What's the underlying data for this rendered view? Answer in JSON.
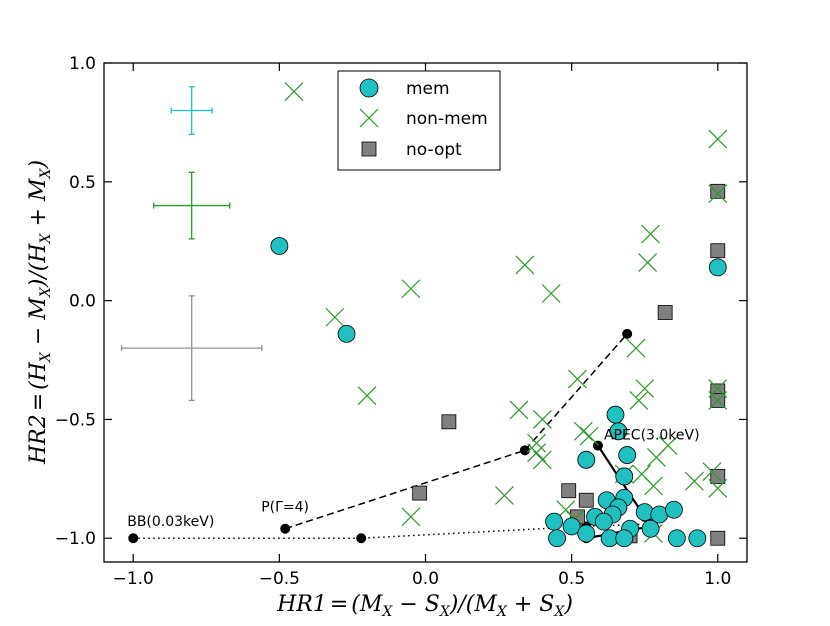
{
  "chart_data": {
    "type": "scatter",
    "title": "",
    "xlabel": "HR1 = (M_X − S_X)/(M_X + S_X)",
    "ylabel": "HR2 = (H_X − M_X)/(H_X + M_X)",
    "xlabel_parts": [
      "HR1",
      "=",
      "(M",
      "X",
      " − S",
      "X",
      ")/(M",
      "X",
      " + S",
      "X",
      ")"
    ],
    "ylabel_parts": [
      "HR2",
      "=",
      "(H",
      "X",
      " − M",
      "X",
      ")/(H",
      "X",
      " + M",
      "X",
      ")"
    ],
    "xlim": [
      -1.1,
      1.1
    ],
    "ylim": [
      -1.1,
      1.0
    ],
    "xticks": [
      -1.0,
      -0.5,
      0.0,
      0.5,
      1.0
    ],
    "xtick_labels": [
      "−1.0",
      "−0.5",
      "0.0",
      "0.5",
      "1.0"
    ],
    "yticks": [
      -1.0,
      -0.5,
      0.0,
      0.5,
      1.0
    ],
    "ytick_labels": [
      "−1.0",
      "−0.5",
      "0.0",
      "0.5",
      "1.0"
    ],
    "legend": {
      "position": "top-center",
      "entries": [
        {
          "label": "mem",
          "marker": "circle",
          "color": "#20c0c0"
        },
        {
          "label": "non-mem",
          "marker": "x",
          "color": "#2a9a2a"
        },
        {
          "label": "no-opt",
          "marker": "square",
          "color": "#808080"
        }
      ]
    },
    "series": [
      {
        "name": "mem",
        "marker": "circle",
        "color": "#20c0c0",
        "points": [
          [
            -0.5,
            0.23
          ],
          [
            -0.27,
            -0.14
          ],
          [
            1.0,
            0.14
          ],
          [
            0.65,
            -0.48
          ],
          [
            0.55,
            -0.67
          ],
          [
            0.66,
            -0.55
          ],
          [
            0.69,
            -0.65
          ],
          [
            0.68,
            -0.74
          ],
          [
            0.68,
            -0.83
          ],
          [
            0.62,
            -0.84
          ],
          [
            0.66,
            -0.87
          ],
          [
            0.64,
            -0.9
          ],
          [
            0.75,
            -0.89
          ],
          [
            0.8,
            -0.9
          ],
          [
            0.85,
            -0.88
          ],
          [
            0.58,
            -0.91
          ],
          [
            0.61,
            -0.93
          ],
          [
            0.7,
            -0.96
          ],
          [
            0.77,
            -0.96
          ],
          [
            0.44,
            -0.93
          ],
          [
            0.5,
            -0.95
          ],
          [
            0.55,
            -0.98
          ],
          [
            0.63,
            -1.0
          ],
          [
            0.68,
            -1.0
          ],
          [
            0.45,
            -1.0
          ],
          [
            0.86,
            -1.0
          ],
          [
            0.93,
            -1.0
          ]
        ]
      },
      {
        "name": "non-mem",
        "marker": "x",
        "color": "#2a9a2a",
        "points": [
          [
            -0.45,
            0.88
          ],
          [
            1.0,
            0.68
          ],
          [
            1.0,
            0.45
          ],
          [
            0.77,
            0.28
          ],
          [
            0.76,
            0.16
          ],
          [
            0.34,
            0.15
          ],
          [
            0.43,
            0.03
          ],
          [
            -0.05,
            0.05
          ],
          [
            -0.31,
            -0.07
          ],
          [
            0.72,
            -0.2
          ],
          [
            0.75,
            -0.37
          ],
          [
            0.73,
            -0.42
          ],
          [
            0.52,
            -0.33
          ],
          [
            -0.2,
            -0.4
          ],
          [
            0.32,
            -0.46
          ],
          [
            0.4,
            -0.5
          ],
          [
            0.38,
            -0.6
          ],
          [
            0.38,
            -0.64
          ],
          [
            0.4,
            -0.67
          ],
          [
            0.54,
            -0.55
          ],
          [
            0.56,
            -0.57
          ],
          [
            0.83,
            -0.61
          ],
          [
            0.79,
            -0.66
          ],
          [
            0.68,
            -0.73
          ],
          [
            0.74,
            -0.73
          ],
          [
            0.78,
            -0.78
          ],
          [
            0.92,
            -0.76
          ],
          [
            0.98,
            -0.72
          ],
          [
            1.0,
            -0.79
          ],
          [
            1.0,
            -0.37
          ],
          [
            1.0,
            -0.42
          ],
          [
            0.27,
            -0.82
          ],
          [
            0.48,
            -0.88
          ],
          [
            0.51,
            -0.92
          ],
          [
            -0.05,
            -0.91
          ],
          [
            0.78,
            -0.98
          ]
        ]
      },
      {
        "name": "no-opt",
        "marker": "square",
        "color": "#808080",
        "points": [
          [
            1.0,
            0.46
          ],
          [
            1.0,
            0.21
          ],
          [
            1.0,
            -0.38
          ],
          [
            1.0,
            -0.42
          ],
          [
            1.0,
            -0.74
          ],
          [
            1.0,
            -1.0
          ],
          [
            0.82,
            -0.05
          ],
          [
            0.08,
            -0.51
          ],
          [
            -0.02,
            -0.81
          ],
          [
            0.49,
            -0.8
          ],
          [
            0.55,
            -0.84
          ],
          [
            0.52,
            -0.91
          ],
          [
            0.7,
            -0.99
          ]
        ]
      }
    ],
    "error_bars": [
      {
        "name": "mem-typical-error",
        "color": "#20c0c0",
        "x": -0.8,
        "y": 0.8,
        "xerr": 0.07,
        "yerr": 0.1
      },
      {
        "name": "non-mem-typical-error",
        "color": "#2a9a2a",
        "x": -0.8,
        "y": 0.4,
        "xerr": 0.13,
        "yerr": 0.14
      },
      {
        "name": "no-opt-typical-error",
        "color": "#909090",
        "x": -0.8,
        "y": -0.2,
        "xerr": 0.24,
        "yerr": 0.22
      }
    ],
    "model_tracks": [
      {
        "name": "BB",
        "label": "BB(0.03keV)",
        "style": "dotted",
        "points": [
          [
            -1.0,
            -1.0
          ],
          [
            -0.22,
            -1.0
          ],
          [
            0.55,
            -0.95
          ],
          [
            0.77,
            -0.94
          ]
        ]
      },
      {
        "name": "powerlaw",
        "label": "P(Γ=4)",
        "style": "dashed",
        "points": [
          [
            -0.48,
            -0.96
          ],
          [
            0.34,
            -0.63
          ],
          [
            0.69,
            -0.14
          ]
        ]
      },
      {
        "name": "APEC",
        "label": "APEC(3.0keV)",
        "style": "solid",
        "segments": [
          [
            [
              0.59,
              -0.61
            ],
            [
              0.75,
              -0.91
            ],
            [
              0.77,
              -0.95
            ]
          ],
          [
            [
              0.55,
              -1.0
            ],
            [
              0.77,
              -0.95
            ]
          ]
        ]
      }
    ]
  }
}
